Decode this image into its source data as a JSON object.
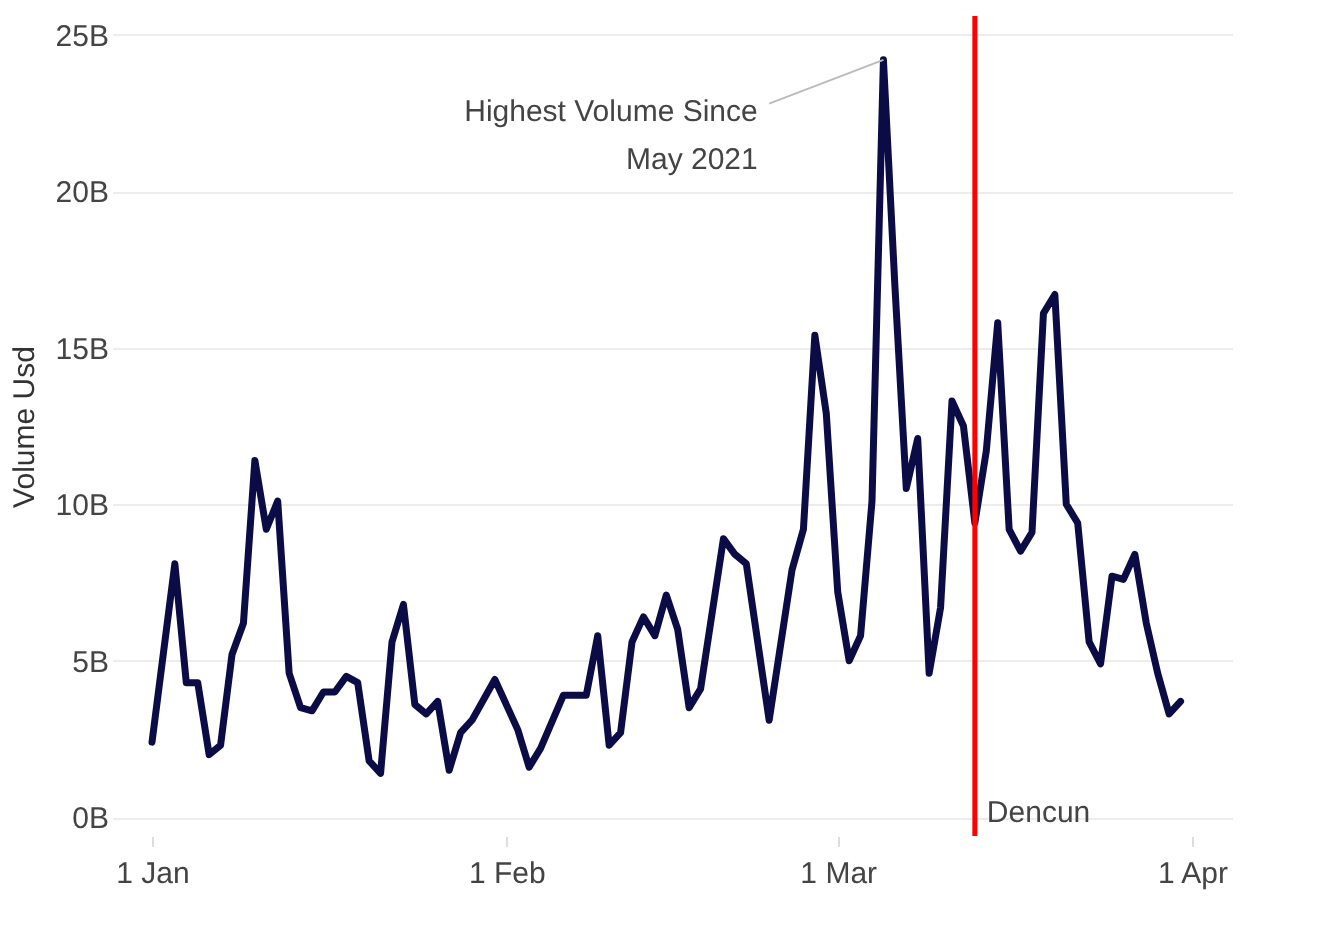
{
  "chart_data": {
    "type": "line",
    "xlabel": null,
    "ylabel": "Volume Usd",
    "x": [
      "--01-01",
      "--01-03",
      "--01-04",
      "--01-05",
      "--01-06",
      "--01-07",
      "--01-08",
      "--01-09",
      "--01-10",
      "--01-11",
      "--01-12",
      "--01-13",
      "--01-14",
      "--01-15",
      "--01-16",
      "--01-17",
      "--01-18",
      "--01-19",
      "--01-20",
      "--01-21",
      "--01-22",
      "--01-23",
      "--01-24",
      "--01-25",
      "--01-26",
      "--01-27",
      "--01-28",
      "--01-29",
      "--01-31",
      "--02-02",
      "--02-03",
      "--02-04",
      "--02-06",
      "--02-08",
      "--02-09",
      "--02-10",
      "--02-11",
      "--02-12",
      "--02-13",
      "--02-14",
      "--02-15",
      "--02-16",
      "--02-17",
      "--02-18",
      "--02-20",
      "--02-21",
      "--02-22",
      "--02-24",
      "--02-26",
      "--02-27",
      "--02-28",
      "--02-29",
      "--03-01",
      "--03-02",
      "--03-03",
      "--03-04",
      "--03-05",
      "--03-06",
      "--03-07",
      "--03-08",
      "--03-09",
      "--03-10",
      "--03-11",
      "--03-12",
      "--03-13",
      "--03-14",
      "--03-15",
      "--03-16",
      "--03-17",
      "--03-18",
      "--03-19",
      "--03-20",
      "--03-21",
      "--03-22",
      "--03-23",
      "--03-24",
      "--03-25",
      "--03-26",
      "--03-27",
      "--03-28",
      "--03-29",
      "--03-30",
      "--03-31"
    ],
    "series": [
      {
        "color": "#0b0c45",
        "values": [
          2.4,
          8.1,
          4.3,
          4.3,
          2.0,
          2.3,
          5.2,
          6.2,
          11.4,
          9.2,
          10.1,
          4.6,
          3.5,
          3.4,
          4.0,
          4.0,
          4.5,
          4.3,
          1.8,
          1.4,
          5.6,
          6.8,
          3.6,
          3.3,
          3.7,
          1.5,
          2.7,
          3.1,
          4.4,
          2.8,
          1.6,
          2.2,
          3.9,
          3.9,
          5.8,
          2.3,
          2.7,
          5.6,
          6.4,
          5.8,
          7.1,
          6.0,
          3.5,
          4.1,
          8.9,
          8.4,
          8.1,
          3.1,
          7.9,
          9.2,
          15.4,
          12.9,
          7.2,
          5.0,
          5.8,
          10.1,
          24.2,
          17.0,
          10.5,
          12.1,
          4.6,
          6.7,
          13.3,
          12.5,
          9.4,
          11.7,
          15.8,
          9.2,
          8.5,
          9.1,
          16.1,
          16.7,
          10.0,
          9.4,
          5.6,
          4.9,
          7.7,
          7.6,
          8.4,
          6.2,
          4.6,
          3.3,
          3.7
        ]
      }
    ],
    "xlim": [
      "--01-01",
      "--04-01"
    ],
    "xticks": [
      {
        "value": "--01-01",
        "label": "1 Jan"
      },
      {
        "value": "--02-01",
        "label": "1 Feb"
      },
      {
        "value": "--03-01",
        "label": "1 Mar"
      },
      {
        "value": "--04-01",
        "label": "1 Apr"
      }
    ],
    "ylim": [
      -0.6,
      25.6
    ],
    "yticks": [
      {
        "value": 0,
        "label": "0B"
      },
      {
        "value": 5,
        "label": "5B"
      },
      {
        "value": 10,
        "label": "10B"
      },
      {
        "value": 15,
        "label": "15B"
      },
      {
        "value": 20,
        "label": "20B"
      },
      {
        "value": 25,
        "label": "25B"
      }
    ],
    "grid": "y",
    "line_style": "solid",
    "ref_lines": [
      {
        "axis": "x",
        "value": "--03-13",
        "label": "Dencun",
        "color": "#ff0000"
      }
    ],
    "annotations": [
      {
        "text": "Highest Volume Since May 2021",
        "x": "--03-05",
        "y": 24.2
      }
    ]
  }
}
